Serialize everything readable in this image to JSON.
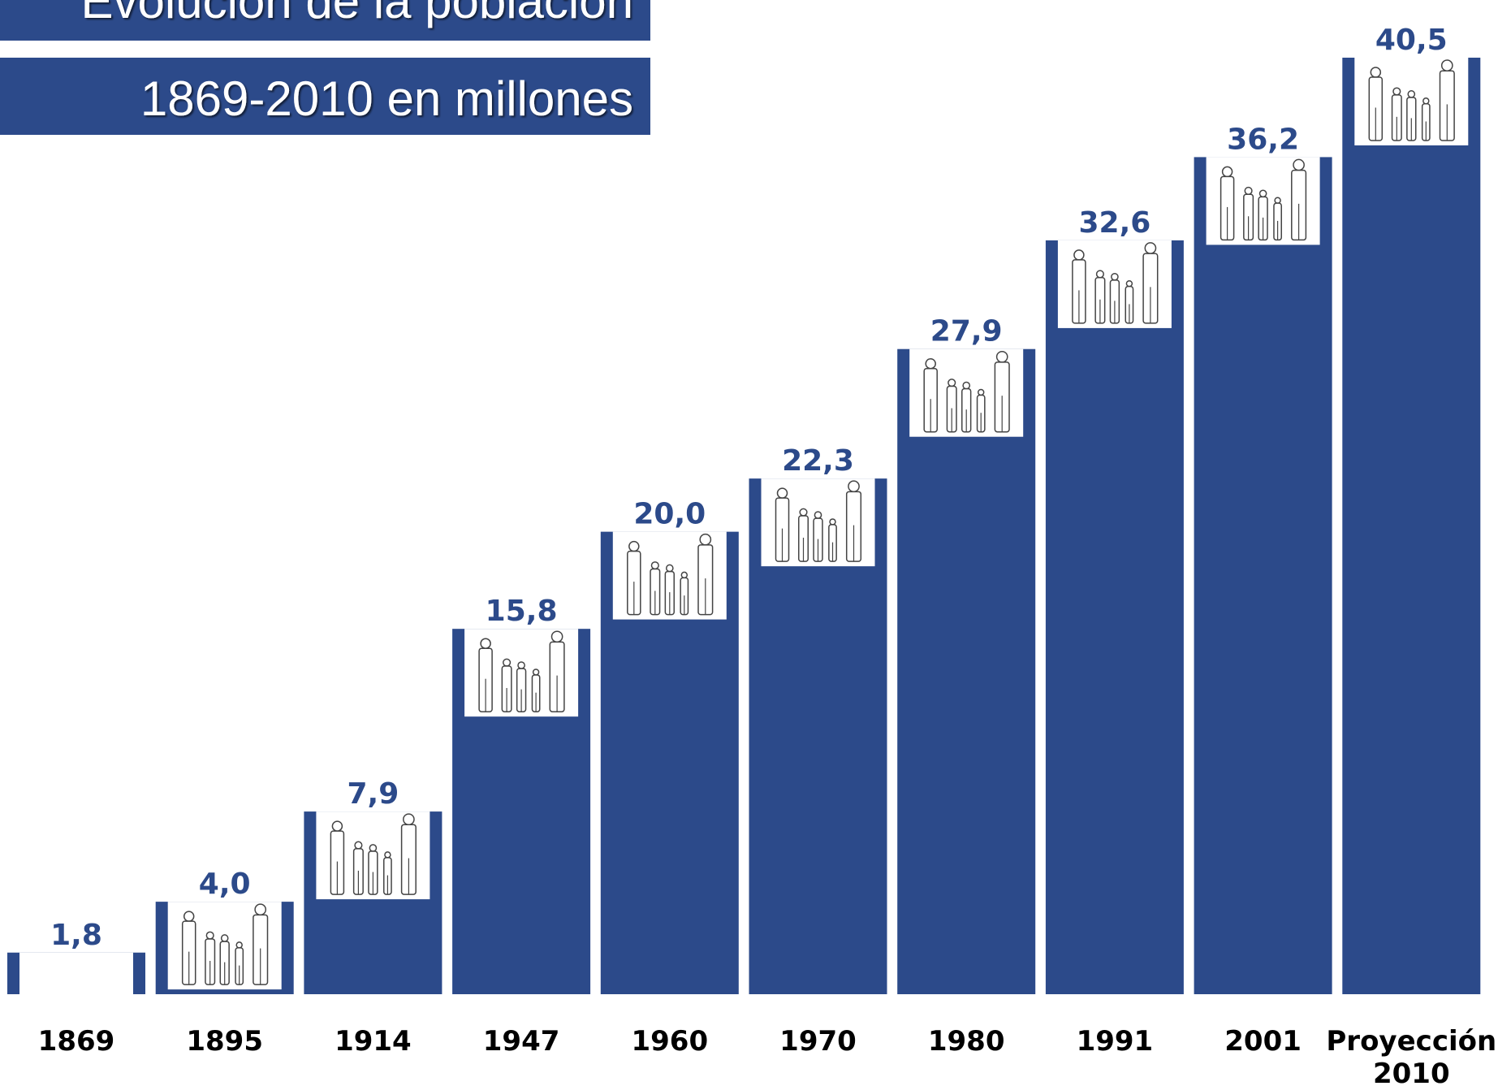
{
  "chart_data": {
    "type": "bar",
    "title": "Evolución de la población",
    "subtitle": "1869-2010 en millones",
    "categories": [
      "1869",
      "1895",
      "1914",
      "1947",
      "1960",
      "1970",
      "1980",
      "1991",
      "2001",
      "Proyección 2010"
    ],
    "values": [
      1.8,
      4.0,
      7.9,
      15.8,
      20.0,
      22.3,
      27.9,
      32.6,
      36.2,
      40.5
    ],
    "value_labels": [
      "1,8",
      "4,0",
      "7,9",
      "15,8",
      "20,0",
      "22,3",
      "27,9",
      "32,6",
      "36,2",
      "40,5"
    ],
    "color": "#2c4a8a"
  }
}
